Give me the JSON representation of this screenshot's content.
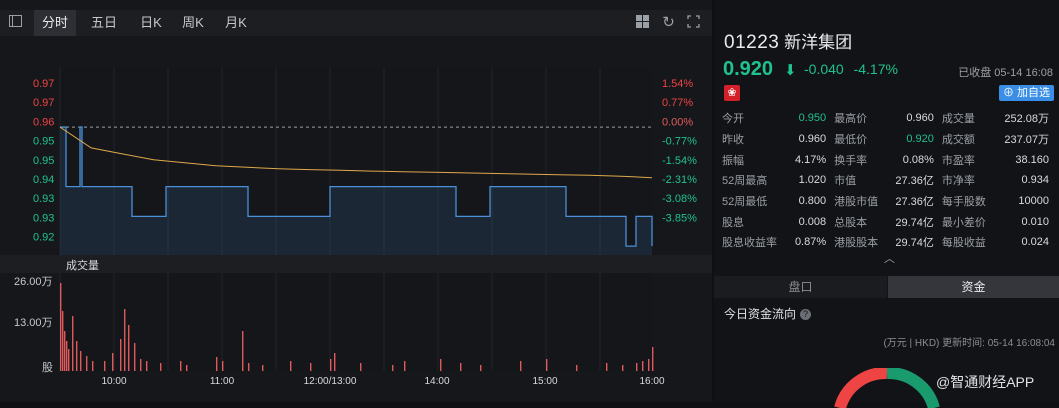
{
  "toolbar": {
    "tabs": [
      {
        "label": "分时",
        "active": true
      },
      {
        "label": "五日",
        "active": false
      },
      {
        "label": "日K",
        "active": false
      },
      {
        "label": "周K",
        "active": false
      },
      {
        "label": "月K",
        "active": false
      }
    ]
  },
  "chart": {
    "price_ticks": [
      "0.97",
      "0.97",
      "0.96",
      "0.95",
      "0.95",
      "0.94",
      "0.93",
      "0.93",
      "0.92"
    ],
    "pct_ticks": [
      "1.54%",
      "0.77%",
      "0.00%",
      "-0.77%",
      "-1.54%",
      "-2.31%",
      "-3.08%",
      "-3.85%"
    ],
    "volume_title": "成交量",
    "volume_ticks": [
      "26.00万",
      "13.00万",
      "股"
    ],
    "time_ticks": [
      "10:00",
      "11:00",
      "12:00/13:00",
      "14:00",
      "15:00",
      "16:00"
    ]
  },
  "chart_data": {
    "type": "line",
    "prev_close": 0.96,
    "ylim": [
      0.9175,
      0.9748
    ],
    "series": [
      {
        "values": [
          0.96,
          0.96,
          0.94,
          0.94,
          0.96,
          0.94,
          0.94,
          0.93,
          0.93,
          0.94,
          0.94,
          0.93,
          0.93,
          0.94,
          0.94,
          0.93,
          0.93,
          0.93,
          0.94,
          0.94,
          0.93,
          0.93,
          0.92,
          0.93,
          0.92
        ]
      },
      {
        "values": [
          0.96,
          0.953,
          0.951,
          0.949,
          0.948,
          0.947,
          0.9465,
          0.946,
          0.9457,
          0.9455,
          0.9452,
          0.945,
          0.9448,
          0.9446,
          0.9444,
          0.9442,
          0.944,
          0.9438,
          0.9435,
          0.943
        ]
      }
    ],
    "volume": {
      "ylim": [
        0,
        26.0
      ],
      "unit": "万"
    }
  },
  "stock": {
    "code": "01223",
    "name": "新洋集团",
    "price": "0.920",
    "arrow": "⬇",
    "change": "-0.040",
    "change_pct": "-4.17%",
    "status": "已收盘 05-14 16:08",
    "market_flag": "❀",
    "add_label": "加自选",
    "add_icon": "⊕",
    "up_color": "#ee4444",
    "down_color": "#1fc28c"
  },
  "quote": [
    [
      [
        "今开",
        "0.950",
        "g"
      ],
      [
        "最高价",
        "0.960",
        ""
      ],
      [
        "成交量",
        "252.08万",
        ""
      ]
    ],
    [
      [
        "昨收",
        "0.960",
        ""
      ],
      [
        "最低价",
        "0.920",
        "g"
      ],
      [
        "成交额",
        "237.07万",
        ""
      ]
    ],
    [
      [
        "振幅",
        "4.17%",
        ""
      ],
      [
        "换手率",
        "0.08%",
        ""
      ],
      [
        "市盈率",
        "38.160",
        ""
      ]
    ],
    [
      [
        "52周最高",
        "1.020",
        ""
      ],
      [
        "市值",
        "27.36亿",
        ""
      ],
      [
        "市净率",
        "0.934",
        ""
      ]
    ],
    [
      [
        "52周最低",
        "0.800",
        ""
      ],
      [
        "港股市值",
        "27.36亿",
        ""
      ],
      [
        "每手股数",
        "10000",
        ""
      ]
    ],
    [
      [
        "股息",
        "0.008",
        ""
      ],
      [
        "总股本",
        "29.74亿",
        ""
      ],
      [
        "最小差价",
        "0.010",
        ""
      ]
    ],
    [
      [
        "股息收益率",
        "0.87%",
        ""
      ],
      [
        "港股股本",
        "29.74亿",
        ""
      ],
      [
        "每股收益",
        "0.024",
        ""
      ]
    ]
  ],
  "panel": {
    "tab_orderbook": "盘口",
    "tab_funds": "资金",
    "flow_title": "今日资金流向",
    "flow_meta": "(万元 | HKD) 更新时间: 05-14 16:08:04",
    "watermark": "@智通财经APP"
  }
}
